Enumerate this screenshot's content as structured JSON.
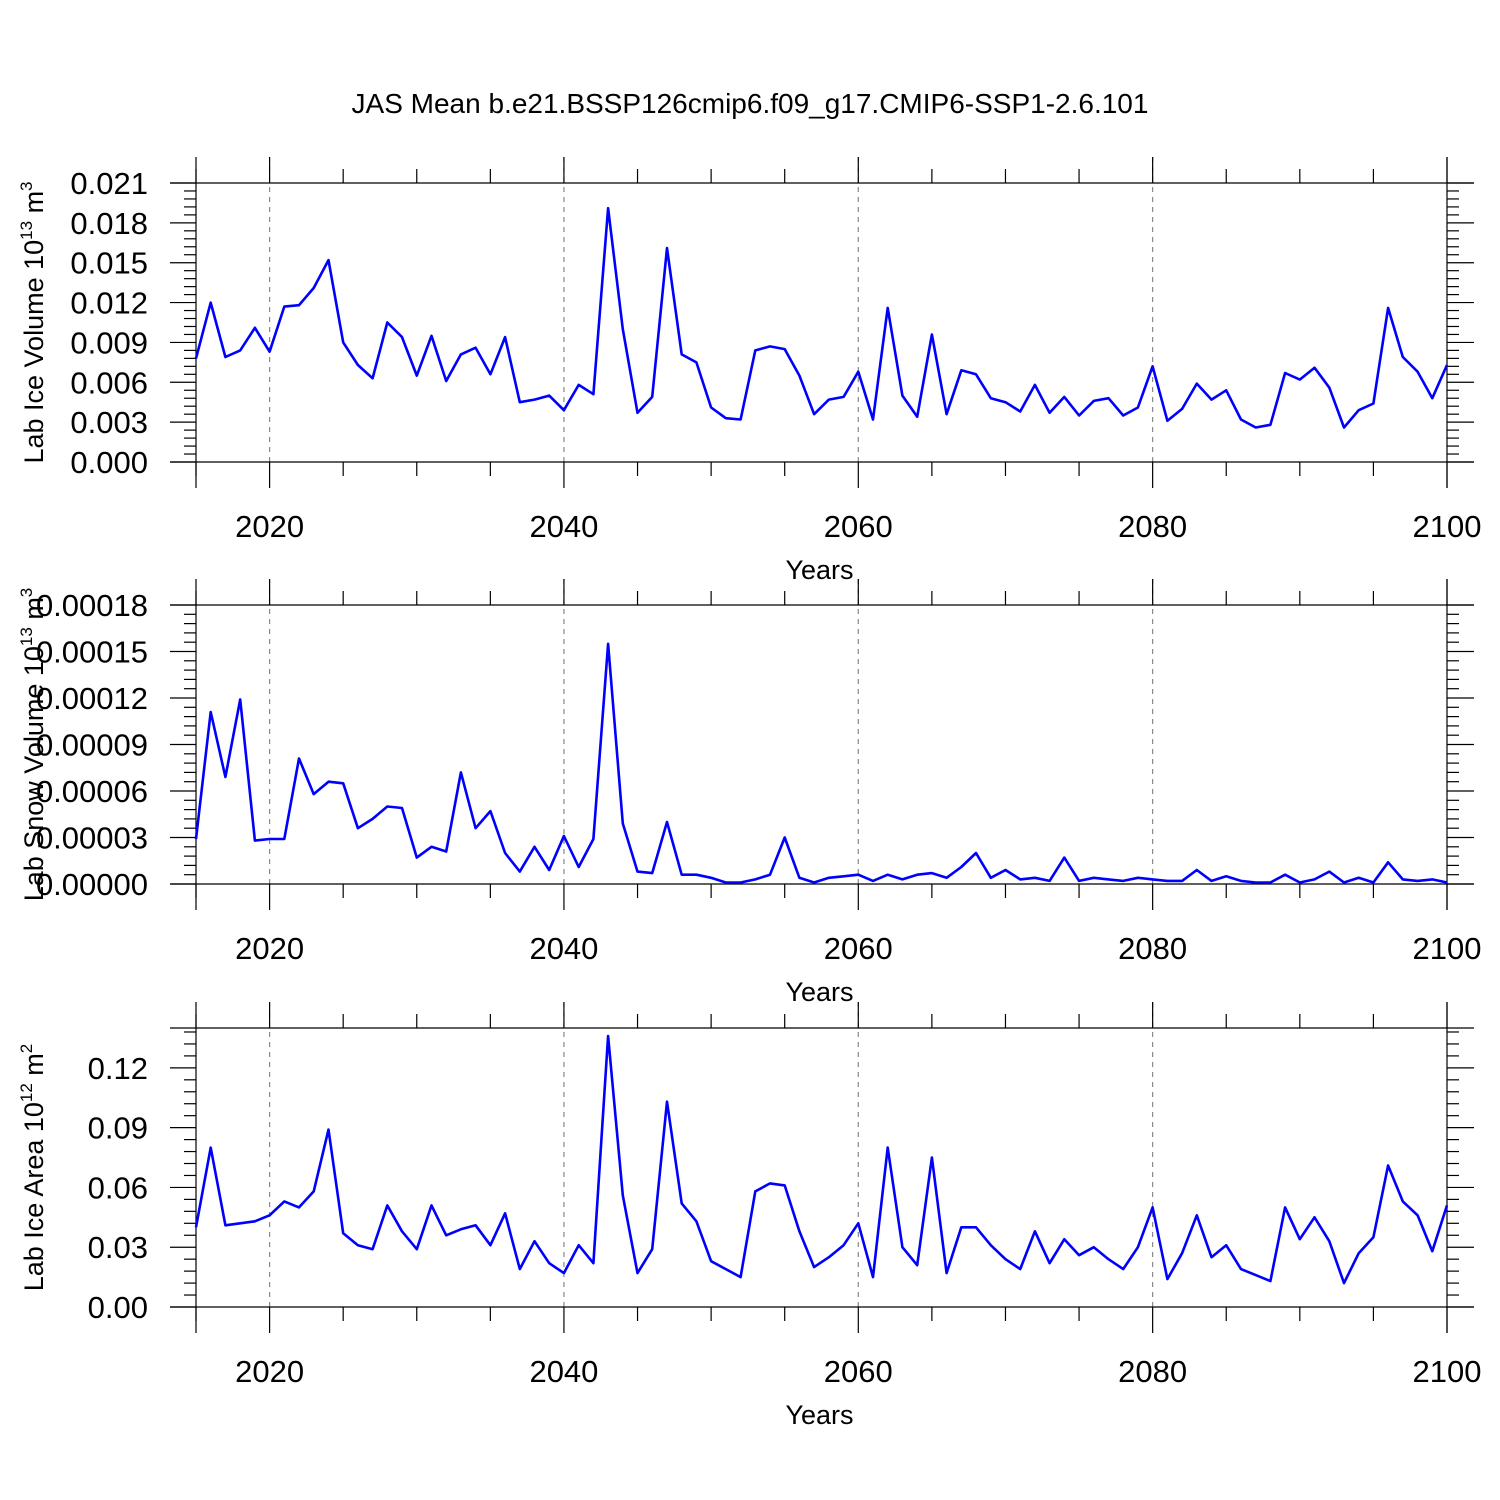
{
  "title": "JAS Mean b.e21.BSSP126cmip6.f09_g17.CMIP6-SSP1-2.6.101",
  "colors": {
    "line": "#0000ff",
    "axis": "#000000",
    "grid": "#888888"
  },
  "chart_data": [
    {
      "type": "line",
      "xlabel": "Years",
      "ylabel_main": "Lab Ice Volume 10",
      "ylabel_exp": "13",
      "ylabel_unit": " m",
      "ylabel_unit_exp": "3",
      "xlim": [
        2015,
        2100
      ],
      "ylim": [
        0,
        0.021
      ],
      "yticks": [
        0.0,
        0.003,
        0.006,
        0.009,
        0.012,
        0.015,
        0.018,
        0.021
      ],
      "ytick_labels": [
        "0.000",
        "0.003",
        "0.006",
        "0.009",
        "0.012",
        "0.015",
        "0.018",
        "0.021"
      ],
      "xticks": [
        2020,
        2040,
        2060,
        2080,
        2100
      ],
      "xtick_labels": [
        "2020",
        "2040",
        "2060",
        "2080",
        "2100"
      ],
      "grid": "vertical dashed at major x ticks",
      "x_start": 2015,
      "values": [
        0.0078,
        0.012,
        0.0079,
        0.0084,
        0.0101,
        0.0083,
        0.0117,
        0.0118,
        0.0131,
        0.0152,
        0.009,
        0.0073,
        0.0063,
        0.0105,
        0.0094,
        0.0065,
        0.0095,
        0.0061,
        0.0081,
        0.0086,
        0.0066,
        0.0094,
        0.0045,
        0.0047,
        0.005,
        0.0039,
        0.0058,
        0.0051,
        0.0191,
        0.01,
        0.0037,
        0.0049,
        0.0161,
        0.0081,
        0.0075,
        0.0041,
        0.0033,
        0.0032,
        0.0084,
        0.0087,
        0.0085,
        0.0065,
        0.0036,
        0.0047,
        0.0049,
        0.0068,
        0.0032,
        0.0116,
        0.005,
        0.0034,
        0.0096,
        0.0036,
        0.0069,
        0.0066,
        0.0048,
        0.0045,
        0.0038,
        0.0058,
        0.0037,
        0.0049,
        0.0035,
        0.0046,
        0.0048,
        0.0035,
        0.0041,
        0.0072,
        0.0031,
        0.004,
        0.0059,
        0.0047,
        0.0054,
        0.0032,
        0.0026,
        0.0028,
        0.0067,
        0.0062,
        0.0071,
        0.0056,
        0.0026,
        0.0039,
        0.0044,
        0.0116,
        0.0079,
        0.0068,
        0.0048,
        0.0073
      ]
    },
    {
      "type": "line",
      "xlabel": "Years",
      "ylabel_main": "Lab Snow Volume 10",
      "ylabel_exp": "13",
      "ylabel_unit": " m",
      "ylabel_unit_exp": "3",
      "xlim": [
        2015,
        2100
      ],
      "ylim": [
        0,
        0.00018
      ],
      "yticks": [
        0,
        3e-05,
        6e-05,
        9e-05,
        0.00012,
        0.00015,
        0.00018
      ],
      "ytick_labels": [
        "0.00000",
        "0.00003",
        "0.00006",
        "0.00009",
        "0.00012",
        "0.00015",
        "0.00018"
      ],
      "xticks": [
        2020,
        2040,
        2060,
        2080,
        2100
      ],
      "xtick_labels": [
        "2020",
        "2040",
        "2060",
        "2080",
        "2100"
      ],
      "grid": "vertical dashed at major x ticks",
      "x_start": 2015,
      "values": [
        2.9e-05,
        0.000111,
        6.9e-05,
        0.000119,
        2.8e-05,
        2.9e-05,
        2.9e-05,
        8.1e-05,
        5.8e-05,
        6.6e-05,
        6.5e-05,
        3.6e-05,
        4.2e-05,
        5e-05,
        4.9e-05,
        1.7e-05,
        2.4e-05,
        2.1e-05,
        7.2e-05,
        3.6e-05,
        4.7e-05,
        2e-05,
        8e-06,
        2.4e-05,
        9e-06,
        3.1e-05,
        1.1e-05,
        2.9e-05,
        0.000155,
        3.9e-05,
        8e-06,
        7e-06,
        4e-05,
        6e-06,
        6e-06,
        4e-06,
        1e-06,
        1e-06,
        3e-06,
        6e-06,
        3e-05,
        4e-06,
        1e-06,
        4e-06,
        5e-06,
        6e-06,
        2e-06,
        6e-06,
        3e-06,
        6e-06,
        7e-06,
        4e-06,
        1.1e-05,
        2e-05,
        4e-06,
        9e-06,
        3e-06,
        4e-06,
        2e-06,
        1.7e-05,
        2e-06,
        4e-06,
        3e-06,
        2e-06,
        4e-06,
        3e-06,
        2e-06,
        2e-06,
        9e-06,
        2e-06,
        5e-06,
        2e-06,
        1e-06,
        1e-06,
        6e-06,
        1e-06,
        3e-06,
        8e-06,
        1e-06,
        4e-06,
        1e-06,
        1.4e-05,
        3e-06,
        2e-06,
        3e-06,
        1e-06
      ]
    },
    {
      "type": "line",
      "xlabel": "Years",
      "ylabel_main": "Lab Ice Area 10",
      "ylabel_exp": "12",
      "ylabel_unit": " m",
      "ylabel_unit_exp": "2",
      "xlim": [
        2015,
        2100
      ],
      "ylim": [
        0,
        0.14
      ],
      "yticks": [
        0.0,
        0.03,
        0.06,
        0.09,
        0.12
      ],
      "ytick_labels": [
        "0.00",
        "0.03",
        "0.06",
        "0.09",
        "0.12"
      ],
      "xticks": [
        2020,
        2040,
        2060,
        2080,
        2100
      ],
      "xtick_labels": [
        "2020",
        "2040",
        "2060",
        "2080",
        "2100"
      ],
      "grid": "vertical dashed at major x ticks",
      "x_start": 2015,
      "values": [
        0.04,
        0.08,
        0.041,
        0.042,
        0.043,
        0.046,
        0.053,
        0.05,
        0.058,
        0.089,
        0.037,
        0.031,
        0.029,
        0.051,
        0.038,
        0.029,
        0.051,
        0.036,
        0.039,
        0.041,
        0.031,
        0.047,
        0.019,
        0.033,
        0.022,
        0.017,
        0.031,
        0.022,
        0.136,
        0.056,
        0.017,
        0.029,
        0.103,
        0.052,
        0.043,
        0.023,
        0.019,
        0.015,
        0.058,
        0.062,
        0.061,
        0.038,
        0.02,
        0.025,
        0.031,
        0.042,
        0.015,
        0.08,
        0.03,
        0.021,
        0.075,
        0.017,
        0.04,
        0.04,
        0.031,
        0.024,
        0.019,
        0.038,
        0.022,
        0.034,
        0.026,
        0.03,
        0.024,
        0.019,
        0.03,
        0.05,
        0.014,
        0.027,
        0.046,
        0.025,
        0.031,
        0.019,
        0.016,
        0.013,
        0.05,
        0.034,
        0.045,
        0.033,
        0.012,
        0.027,
        0.035,
        0.071,
        0.053,
        0.046,
        0.028,
        0.051
      ]
    }
  ]
}
